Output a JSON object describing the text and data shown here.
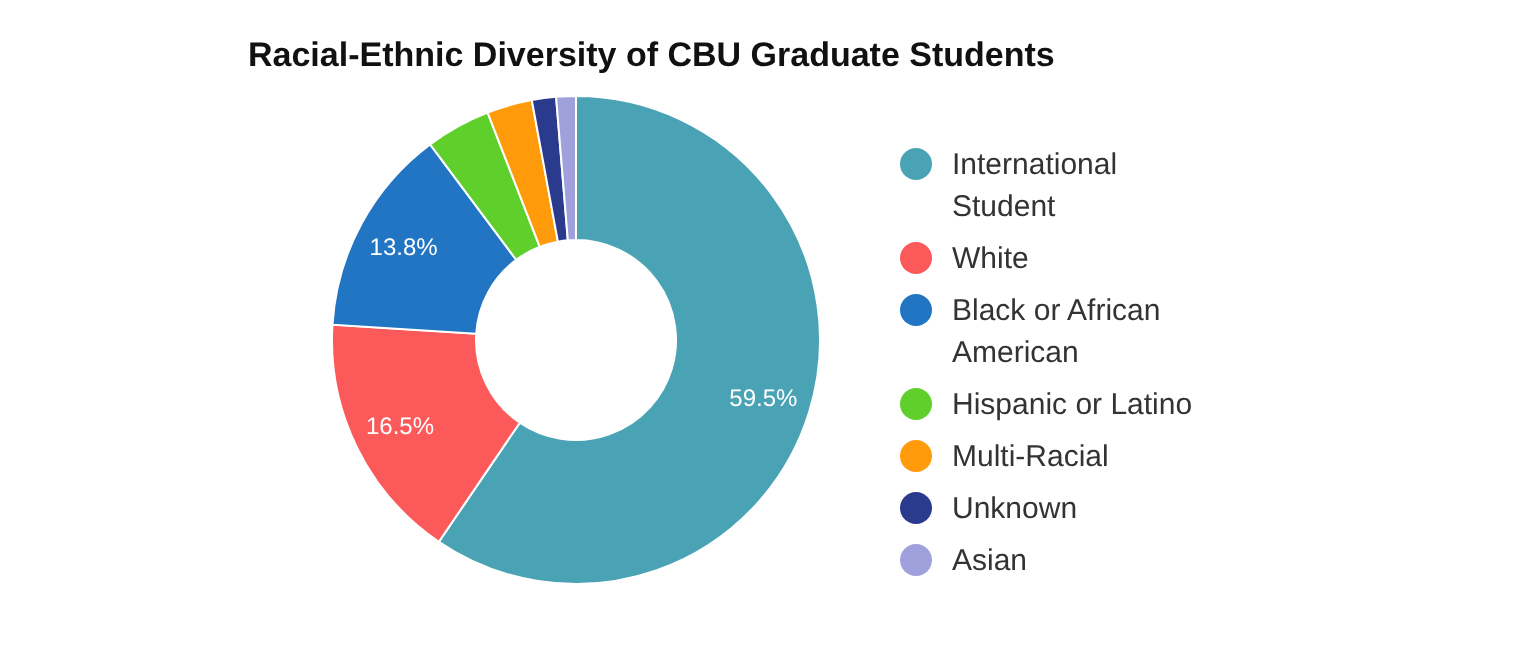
{
  "chart_data": {
    "type": "donut",
    "title": "Racial-Ethnic Diversity of CBU Graduate Students",
    "categories": [
      "International Student",
      "White",
      "Black or African American",
      "Hispanic or Latino",
      "Multi-Racial",
      "Unknown",
      "Asian"
    ],
    "values": [
      59.5,
      16.5,
      13.8,
      4.3,
      3.0,
      1.6,
      1.3
    ],
    "colors": [
      "#4aa3b5",
      "#fc5a5a",
      "#2175c2",
      "#5fcf2c",
      "#ff9a0a",
      "#2a3a8c",
      "#a0a0dc"
    ],
    "value_labels": [
      "59.5%",
      "16.5%",
      "13.8%",
      null,
      null,
      null,
      null
    ],
    "legend": "right"
  }
}
